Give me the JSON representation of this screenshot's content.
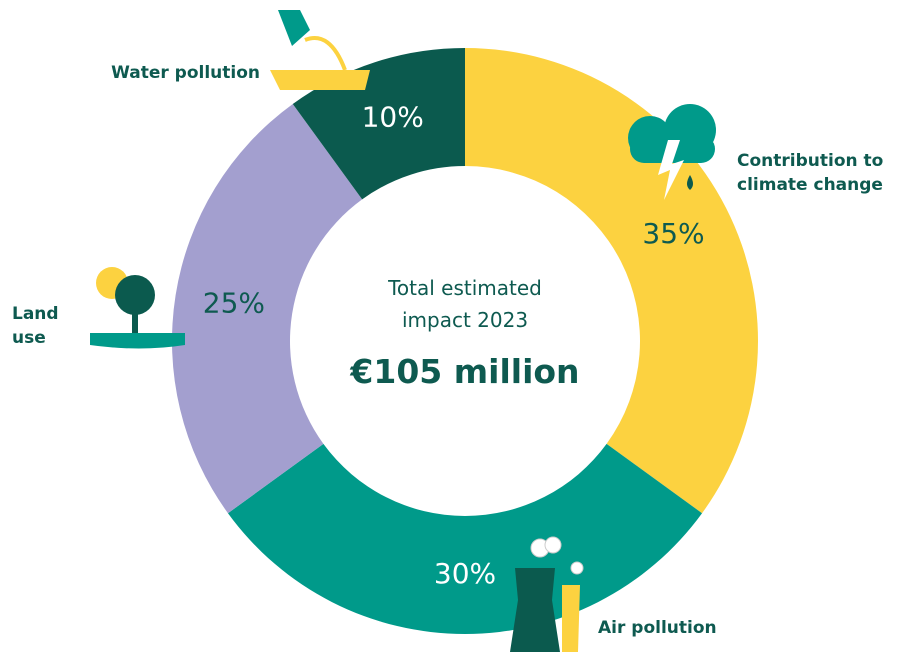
{
  "chart_data": {
    "type": "donut",
    "center_text": "Total estimated impact 2023",
    "center_value": "€105 million",
    "categories": [
      "Contribution to climate change",
      "Air pollution",
      "Land use",
      "Water pollution"
    ],
    "values": [
      35,
      30,
      25,
      10
    ],
    "value_labels": [
      "35%",
      "30%",
      "25%",
      "10%"
    ],
    "colors": [
      "#fcd240",
      "#009a8a",
      "#a39fcf",
      "#0b5a4e"
    ]
  }
}
